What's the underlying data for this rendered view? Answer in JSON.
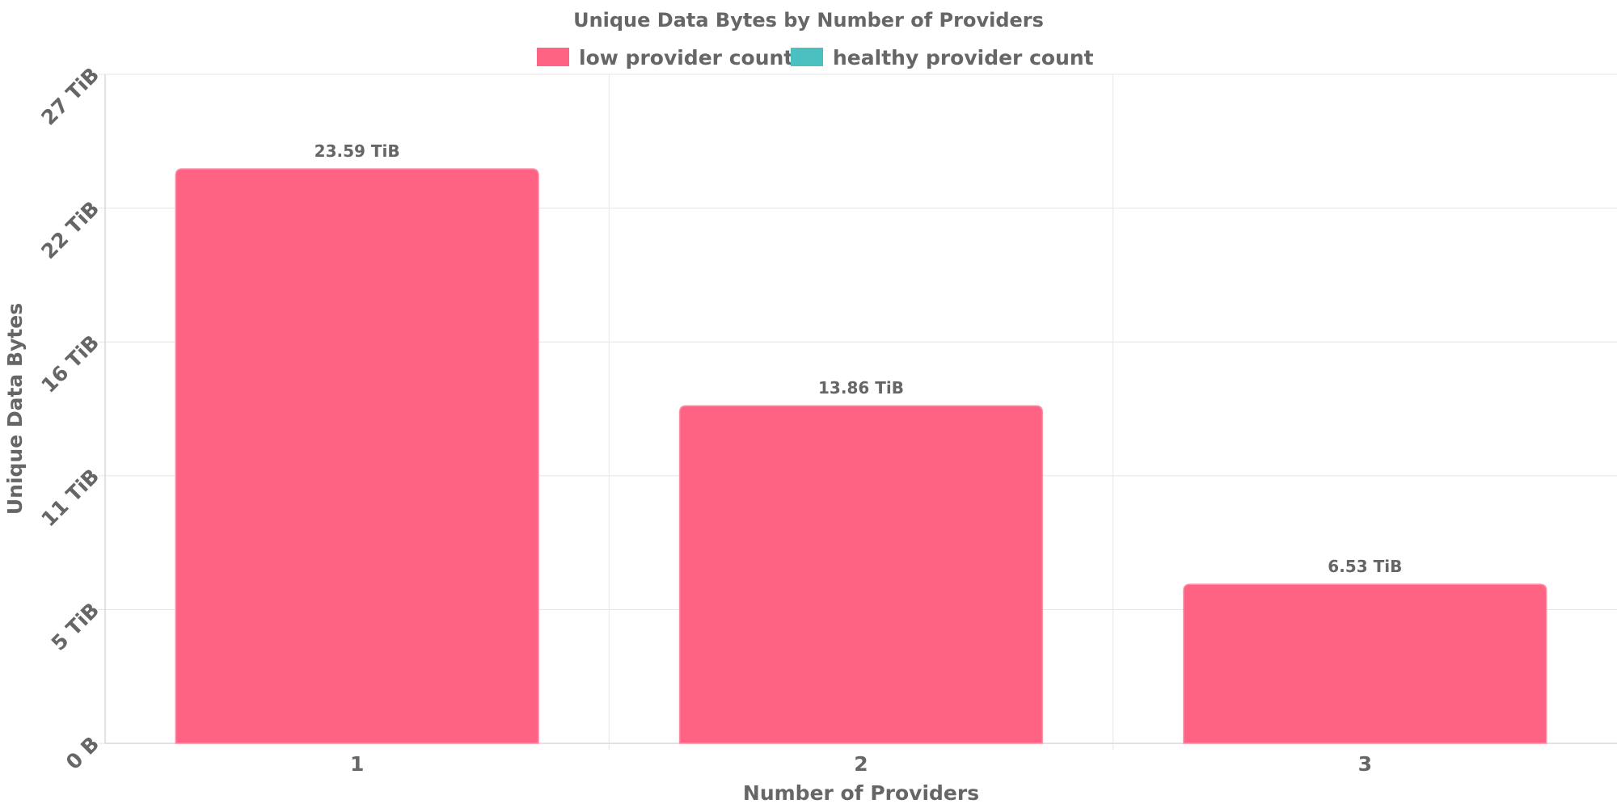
{
  "chart_data": {
    "type": "bar",
    "title": "Unique Data Bytes by Number of Providers",
    "xlabel": "Number of Providers",
    "ylabel": "Unique Data Bytes",
    "categories": [
      "1",
      "2",
      "3"
    ],
    "series": [
      {
        "name": "low provider count",
        "color": "#ff6384",
        "values": [
          23.59,
          13.86,
          6.53
        ],
        "value_labels": [
          "23.59 TiB",
          "13.86 TiB",
          "6.53 TiB"
        ]
      },
      {
        "name": "healthy provider count",
        "color": "#4bc0c0",
        "values": [
          0,
          0,
          0
        ],
        "value_labels": []
      }
    ],
    "unit": "TiB",
    "ylim": [
      0,
      27.47
    ],
    "y_ticks": [
      {
        "value": 0,
        "label": "0 B"
      },
      {
        "value": 5.49,
        "label": "5 TiB"
      },
      {
        "value": 10.99,
        "label": "11 TiB"
      },
      {
        "value": 16.48,
        "label": "16 TiB"
      },
      {
        "value": 21.98,
        "label": "22 TiB"
      },
      {
        "value": 27.47,
        "label": "27 TiB"
      }
    ],
    "grid": true,
    "legend_position": "top"
  }
}
